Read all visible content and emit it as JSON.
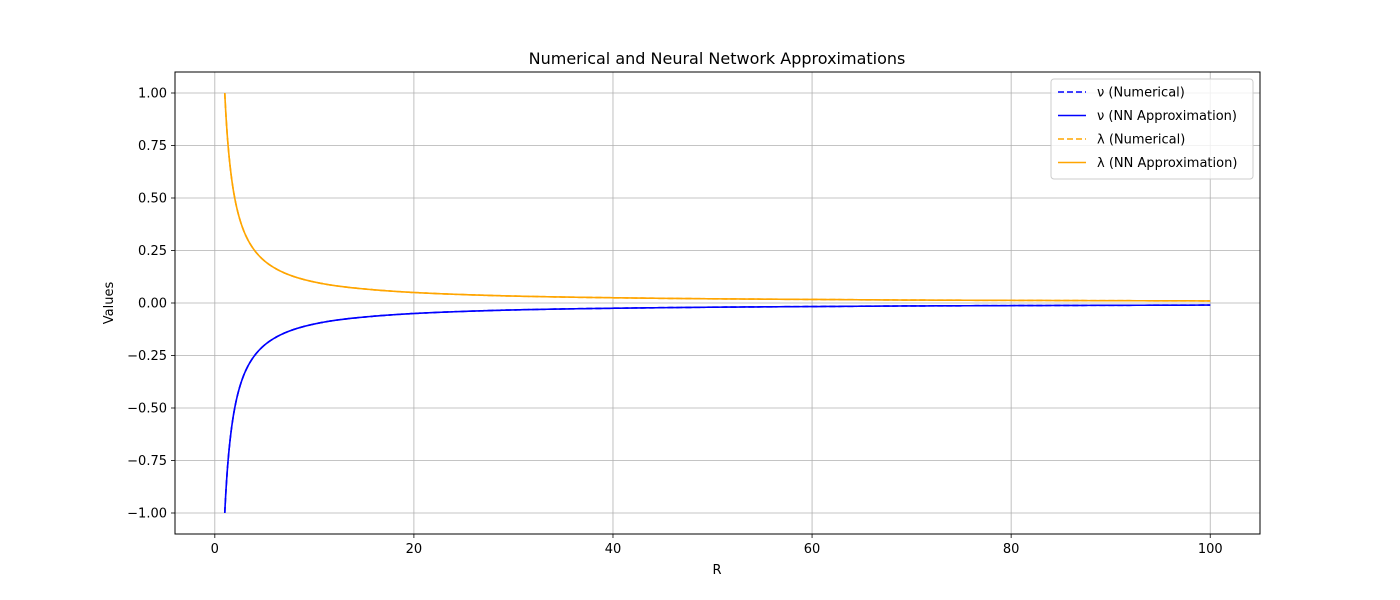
{
  "chart_data": {
    "type": "line",
    "title": "Numerical and Neural Network Approximations",
    "xlabel": "R",
    "ylabel": "Values",
    "xlim": [
      -4,
      105
    ],
    "ylim": [
      -1.1,
      1.1
    ],
    "xticks": [
      0,
      20,
      40,
      60,
      80,
      100
    ],
    "yticks": [
      -1.0,
      -0.75,
      -0.5,
      -0.25,
      0.0,
      0.25,
      0.5,
      0.75,
      1.0
    ],
    "xtick_labels": [
      "0",
      "20",
      "40",
      "60",
      "80",
      "100"
    ],
    "ytick_labels": [
      "−1.00",
      "−0.75",
      "−0.50",
      "−0.25",
      "0.00",
      "0.25",
      "0.50",
      "0.75",
      "1.00"
    ],
    "grid": true,
    "legend_position": "top-right",
    "series": [
      {
        "name": "ν (Numerical)",
        "color": "#0000ff",
        "style": "dashed",
        "x": [
          1,
          1.5,
          2,
          2.5,
          3,
          4,
          5,
          6,
          8,
          10,
          12,
          15,
          20,
          25,
          30,
          40,
          50,
          60,
          70,
          80,
          90,
          100
        ],
        "y": [
          -1.0,
          -0.667,
          -0.5,
          -0.4,
          -0.333,
          -0.25,
          -0.2,
          -0.167,
          -0.125,
          -0.1,
          -0.083,
          -0.067,
          -0.05,
          -0.04,
          -0.033,
          -0.025,
          -0.02,
          -0.017,
          -0.014,
          -0.0125,
          -0.011,
          -0.01
        ]
      },
      {
        "name": "ν (NN Approximation)",
        "color": "#0000ff",
        "style": "solid",
        "x": [
          1,
          1.5,
          2,
          2.5,
          3,
          4,
          5,
          6,
          8,
          10,
          12,
          15,
          20,
          25,
          30,
          40,
          50,
          60,
          70,
          80,
          90,
          100
        ],
        "y": [
          -1.0,
          -0.667,
          -0.5,
          -0.4,
          -0.333,
          -0.25,
          -0.2,
          -0.167,
          -0.125,
          -0.1,
          -0.083,
          -0.067,
          -0.05,
          -0.04,
          -0.033,
          -0.025,
          -0.02,
          -0.017,
          -0.014,
          -0.0125,
          -0.011,
          -0.01
        ]
      },
      {
        "name": "λ (Numerical)",
        "color": "#ffa500",
        "style": "dashed",
        "x": [
          1,
          1.5,
          2,
          2.5,
          3,
          4,
          5,
          6,
          8,
          10,
          12,
          15,
          20,
          25,
          30,
          40,
          50,
          60,
          70,
          80,
          90,
          100
        ],
        "y": [
          1.0,
          0.667,
          0.5,
          0.4,
          0.333,
          0.25,
          0.2,
          0.167,
          0.125,
          0.1,
          0.083,
          0.067,
          0.05,
          0.04,
          0.033,
          0.025,
          0.02,
          0.017,
          0.014,
          0.0125,
          0.011,
          0.01
        ]
      },
      {
        "name": "λ (NN Approximation)",
        "color": "#ffa500",
        "style": "solid",
        "x": [
          1,
          1.5,
          2,
          2.5,
          3,
          4,
          5,
          6,
          8,
          10,
          12,
          15,
          20,
          25,
          30,
          40,
          50,
          60,
          70,
          80,
          90,
          100
        ],
        "y": [
          1.0,
          0.667,
          0.5,
          0.4,
          0.333,
          0.25,
          0.2,
          0.167,
          0.125,
          0.1,
          0.083,
          0.067,
          0.05,
          0.04,
          0.033,
          0.025,
          0.02,
          0.017,
          0.014,
          0.0125,
          0.011,
          0.01
        ]
      }
    ]
  }
}
